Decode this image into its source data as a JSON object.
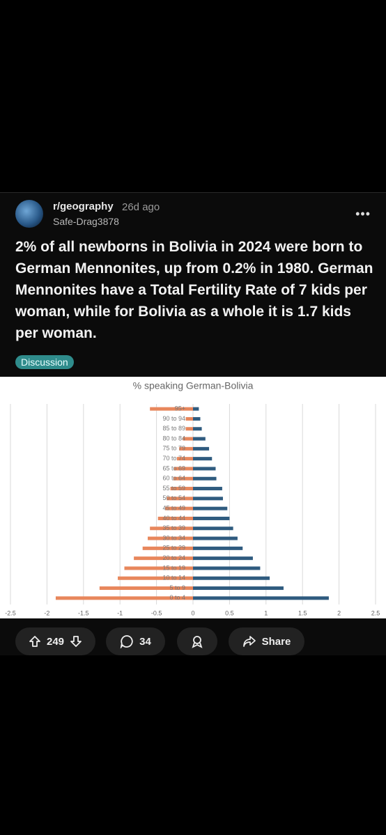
{
  "post": {
    "subreddit": "r/geography",
    "time": "26d ago",
    "author": "Safe-Drag3878",
    "title": "2% of all newborns in Bolivia in 2024 were born to German Mennonites, up from 0.2% in 1980. German Mennonites have a Total Fertility Rate of 7 kids per woman, while for Bolivia as a whole it is 1.7 kids per woman.",
    "flair": "Discussion",
    "upvotes": 249,
    "comments": 34,
    "share": "Share"
  },
  "chart_data": {
    "type": "pyramid",
    "title": "% speaking German-Bolivia",
    "categories": [
      "0 to 4",
      "5 to 9",
      "10 to 14",
      "15 to 19",
      "20 to 24",
      "25 to 29",
      "30 to 34",
      "35 to 39",
      "40 to 44",
      "45 to 49",
      "50 to 54",
      "55 to 59",
      "60 to 64",
      "65 to 69",
      "70 to 74",
      "75 to 79",
      "80 to 84",
      "85 to 89",
      "90 to 94",
      "95+"
    ],
    "series": [
      {
        "color": "#2f5b7f",
        "values": [
          1.86,
          1.24,
          1.05,
          0.92,
          0.82,
          0.68,
          0.61,
          0.55,
          0.5,
          0.47,
          0.41,
          0.4,
          0.32,
          0.31,
          0.26,
          0.22,
          0.17,
          0.12,
          0.1,
          0.08
        ]
      },
      {
        "color": "#e8875c",
        "values": [
          -1.88,
          -1.28,
          -1.03,
          -0.94,
          -0.81,
          -0.69,
          -0.62,
          -0.59,
          -0.48,
          -0.38,
          -0.36,
          -0.31,
          -0.27,
          -0.26,
          -0.22,
          -0.19,
          -0.14,
          -0.1,
          -0.1,
          -0.59
        ]
      }
    ],
    "xlim": [
      -2.5,
      2.5
    ],
    "xticks": [
      -2.5,
      -2,
      -1.5,
      -1,
      -0.5,
      0,
      0.5,
      1,
      1.5,
      2,
      2.5
    ],
    "grid": true
  }
}
